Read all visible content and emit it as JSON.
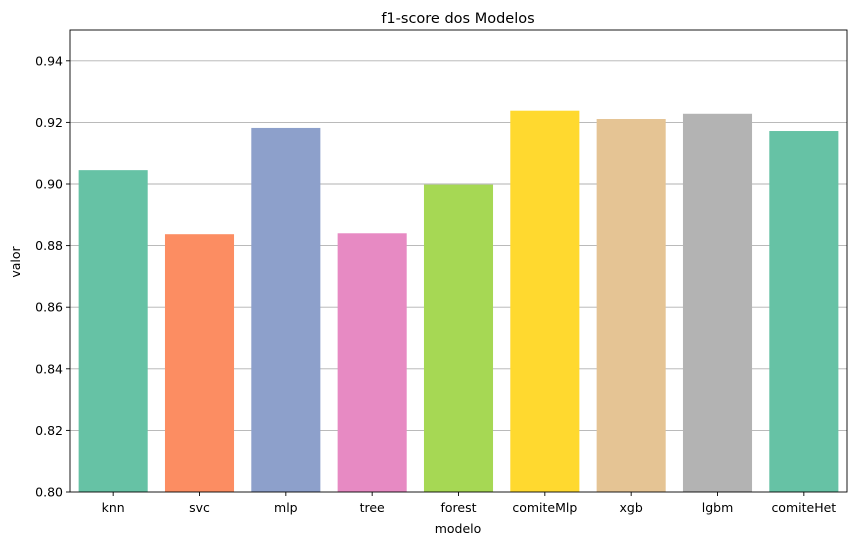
{
  "chart_data": {
    "type": "bar",
    "title": "f1-score dos Modelos",
    "xlabel": "modelo",
    "ylabel": "valor",
    "categories": [
      "knn",
      "svc",
      "mlp",
      "tree",
      "forest",
      "comiteMlp",
      "xgb",
      "lgbm",
      "comiteHet"
    ],
    "values": [
      0.9045,
      0.8837,
      0.9182,
      0.884,
      0.8998,
      0.9238,
      0.9211,
      0.9228,
      0.9172
    ],
    "colors": [
      "#66c2a5",
      "#fc8d62",
      "#8da0cb",
      "#e78ac3",
      "#a6d854",
      "#ffd92f",
      "#e5c494",
      "#b3b3b3",
      "#66c2a5"
    ],
    "ylim": [
      0.8,
      0.95
    ],
    "yticks": [
      "0.80",
      "0.82",
      "0.84",
      "0.86",
      "0.88",
      "0.90",
      "0.92",
      "0.94"
    ],
    "grid": "y",
    "legend": "none"
  }
}
